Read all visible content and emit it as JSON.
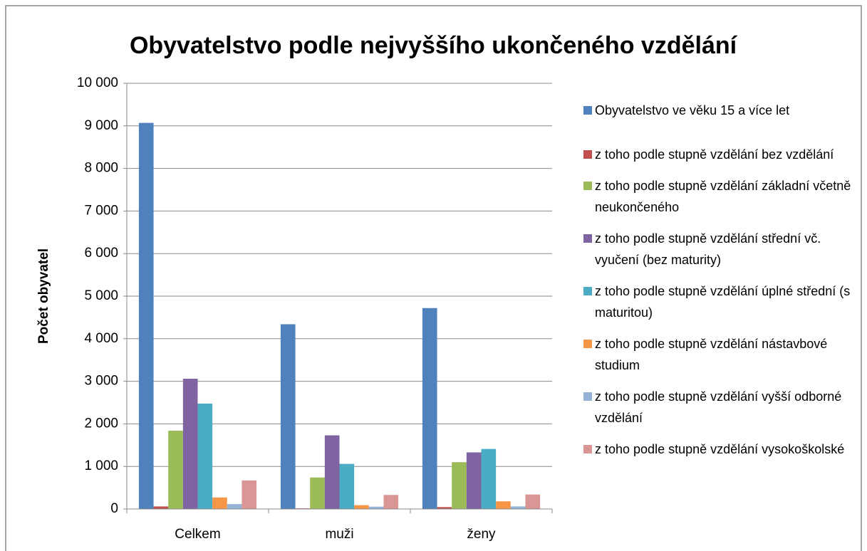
{
  "chart_data": {
    "type": "bar",
    "title": "Obyvatelstvo podle nejvyššího ukončeného vzdělání",
    "y_label": "Počet obyvatel",
    "categories": [
      "Celkem",
      "muži",
      "ženy"
    ],
    "series": [
      {
        "name": "Obyvatelstvo ve věku 15 a více let",
        "color": "#4f81bd",
        "values": [
          9070,
          4340,
          4720
        ]
      },
      {
        "name": "z toho podle stupně vzdělání bez vzdělání",
        "color": "#c0504d",
        "values": [
          60,
          15,
          45
        ]
      },
      {
        "name": "z toho podle stupně vzdělání základní včetně neukončeného",
        "color": "#9bbb59",
        "values": [
          1840,
          740,
          1100
        ]
      },
      {
        "name": "z toho podle stupně vzdělání střední vč. vyučení (bez maturity)",
        "color": "#8064a2",
        "values": [
          3060,
          1730,
          1330
        ]
      },
      {
        "name": "z toho podle stupně vzdělání úplné střední (s maturitou)",
        "color": "#4bacc6",
        "values": [
          2475,
          1060,
          1410
        ]
      },
      {
        "name": "z toho podle stupně vzdělání nástavbové studium",
        "color": "#f79646",
        "values": [
          270,
          90,
          180
        ]
      },
      {
        "name": "z toho podle stupně vzdělání vyšší odborné vzdělání",
        "color": "#95b3d7",
        "values": [
          115,
          55,
          60
        ]
      },
      {
        "name": "z toho podle stupně vzdělání vysokoškolské",
        "color": "#d99694",
        "values": [
          670,
          330,
          340
        ]
      }
    ],
    "ylim": [
      0,
      10000
    ],
    "yticks": [
      0,
      {
        "value": 1000,
        "label": "1 000"
      },
      {
        "value": 2000,
        "label": "2 000"
      },
      {
        "value": 3000,
        "label": "3 000"
      },
      {
        "value": 4000,
        "label": "4 000"
      },
      {
        "value": 5000,
        "label": "5 000"
      },
      {
        "value": 6000,
        "label": "6 000"
      },
      {
        "value": 7000,
        "label": "7 000"
      },
      {
        "value": 8000,
        "label": "8 000"
      },
      {
        "value": 9000,
        "label": "9 000"
      },
      {
        "value": 10000,
        "label": "10 000"
      }
    ],
    "grid": true,
    "legend": "right"
  }
}
